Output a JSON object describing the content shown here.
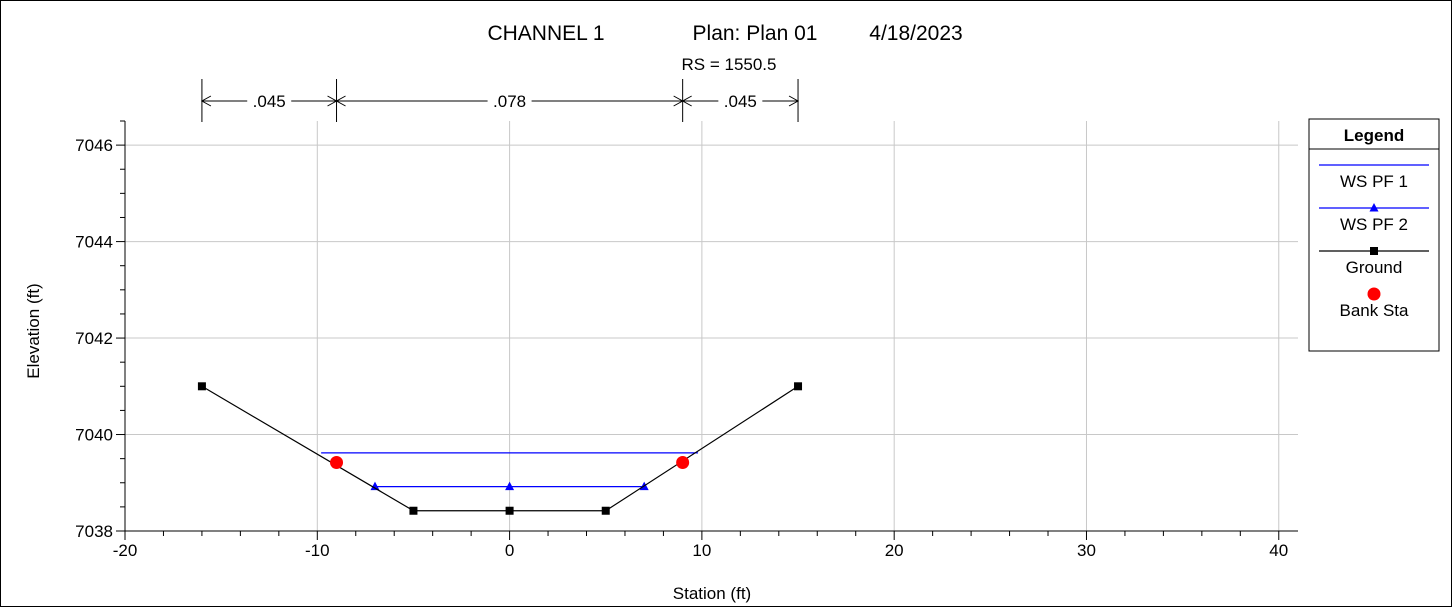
{
  "header": {
    "title": "CHANNEL 1",
    "plan": "Plan: Plan 01",
    "date": "4/18/2023",
    "subtitle": "RS = 1550.5"
  },
  "mannings_n": [
    {
      "value": ".045",
      "from": -16,
      "to": -9
    },
    {
      "value": ".078",
      "from": -9,
      "to": 9
    },
    {
      "value": ".045",
      "from": 9,
      "to": 15
    }
  ],
  "legend": {
    "title": "Legend",
    "items": [
      {
        "label": "WS PF 1",
        "color": "#0000ff",
        "marker": "none"
      },
      {
        "label": "WS PF 2",
        "color": "#0000ff",
        "marker": "triangle"
      },
      {
        "label": "Ground",
        "color": "#000000",
        "marker": "square"
      },
      {
        "label": "Bank Sta",
        "color": "#ff0000",
        "marker": "circle"
      }
    ]
  },
  "chart_data": {
    "type": "line",
    "xlabel": "Station (ft)",
    "ylabel": "Elevation (ft)",
    "xlim": [
      -20,
      41
    ],
    "ylim": [
      7038,
      7046.5
    ],
    "xticks": [
      -20,
      -10,
      0,
      10,
      20,
      30,
      40
    ],
    "yticks": [
      7038,
      7040,
      7042,
      7044,
      7046
    ],
    "xtick_labels": [
      "-20",
      "-10",
      "0",
      "10",
      "20",
      "30",
      "40"
    ],
    "ytick_labels": [
      "7038",
      "7040",
      "7042",
      "7044",
      "7046"
    ],
    "grid": true,
    "legend_position": "right",
    "series": [
      {
        "name": "WS PF 1",
        "color": "#0000ff",
        "marker": "none",
        "x": [
          -9.8,
          9.8
        ],
        "y": [
          7039.62,
          7039.62
        ]
      },
      {
        "name": "WS PF 2",
        "color": "#0000ff",
        "marker": "triangle",
        "x": [
          -7,
          0,
          7
        ],
        "y": [
          7038.92,
          7038.92,
          7038.92
        ]
      },
      {
        "name": "Ground",
        "color": "#000000",
        "marker": "square",
        "x": [
          -16,
          -5,
          0,
          5,
          15
        ],
        "y": [
          7041.0,
          7038.42,
          7038.42,
          7038.42,
          7041.0
        ]
      },
      {
        "name": "Bank Sta",
        "color": "#ff0000",
        "marker": "circle",
        "x": [
          -9,
          9
        ],
        "y": [
          7039.42,
          7039.42
        ]
      }
    ]
  }
}
